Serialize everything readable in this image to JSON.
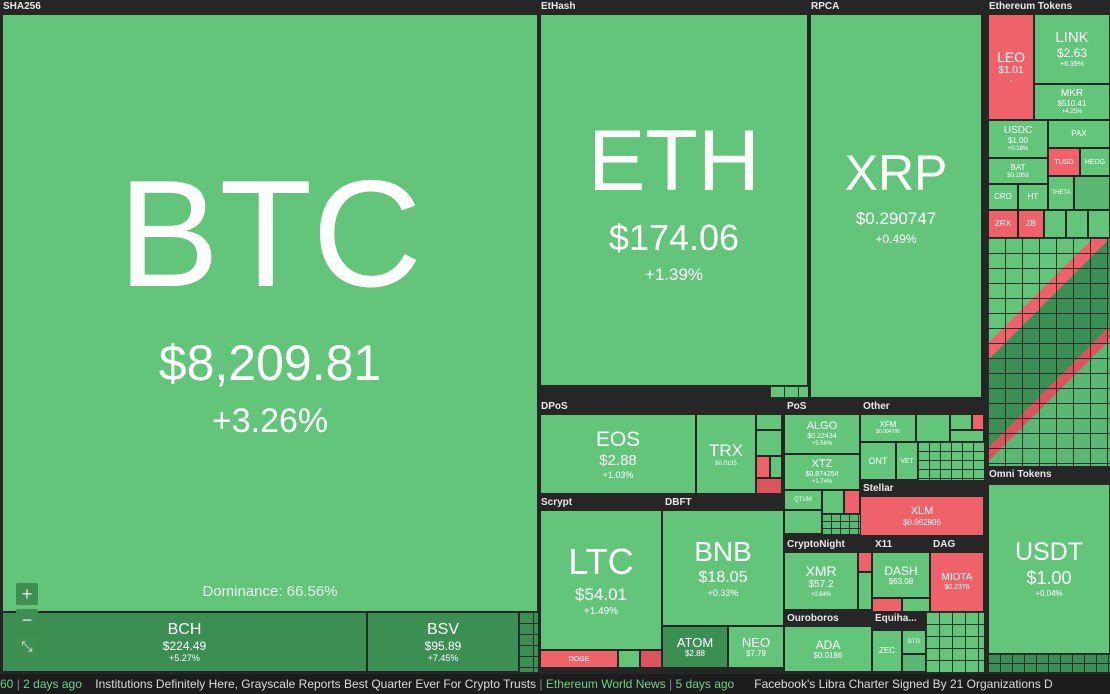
{
  "sectors": {
    "sha256": "SHA256",
    "ethash": "EtHash",
    "rpca": "RPCA",
    "eth_tokens": "Ethereum Tokens",
    "dpos": "DPoS",
    "pos": "PoS",
    "other": "Other",
    "scrypt": "Scrypt",
    "dbft": "DBFT",
    "stellar": "Stellar",
    "cryptonight": "CryptoNight",
    "x11": "X11",
    "dag": "DAG",
    "ouroboros": "Ouroboros",
    "equihash": "Equiha...",
    "omni": "Omni Tokens"
  },
  "coins": {
    "btc": {
      "sym": "BTC",
      "price": "$8,209.81",
      "pct": "+3.26%"
    },
    "dominance": "Dominance: 66.56%",
    "bch": {
      "sym": "BCH",
      "price": "$224.49",
      "pct": "+5.27%"
    },
    "bsv": {
      "sym": "BSV",
      "price": "$95.89",
      "pct": "+7.45%"
    },
    "eth": {
      "sym": "ETH",
      "price": "$174.06",
      "pct": "+1.39%"
    },
    "xrp": {
      "sym": "XRP",
      "price": "$0.290747",
      "pct": "+0.49%"
    },
    "leo": {
      "sym": "LEO",
      "price": "$1.01",
      "pct": "-"
    },
    "link": {
      "sym": "LINK",
      "price": "$2.63",
      "pct": "+6.39%"
    },
    "mkr": {
      "sym": "MKR",
      "price": "$510.41",
      "pct": "+4.25%"
    },
    "usdc": {
      "sym": "USDC",
      "price": "$1.00",
      "pct": "+0.18%"
    },
    "pax": {
      "sym": "PAX",
      "price": "",
      "pct": ""
    },
    "bat": {
      "sym": "BAT",
      "price": "$0.1956",
      "pct": ""
    },
    "tusd": {
      "sym": "TUSD",
      "price": "",
      "pct": ""
    },
    "hedg": {
      "sym": "HEDG",
      "price": "",
      "pct": ""
    },
    "cro": {
      "sym": "CRO",
      "price": "",
      "pct": ""
    },
    "ht": {
      "sym": "HT",
      "price": "",
      "pct": ""
    },
    "theta": {
      "sym": "THETA",
      "price": "",
      "pct": ""
    },
    "zrx": {
      "sym": "ZRX",
      "price": "",
      "pct": ""
    },
    "zb": {
      "sym": "ZB",
      "price": "",
      "pct": ""
    },
    "eos": {
      "sym": "EOS",
      "price": "$2.88",
      "pct": "+1.03%"
    },
    "trx": {
      "sym": "TRX",
      "price": "$0.0135",
      "pct": ""
    },
    "algo": {
      "sym": "ALGO",
      "price": "$0.22434",
      "pct": "+5.56%"
    },
    "xtz": {
      "sym": "XTZ",
      "price": "$0.874254",
      "pct": "+1.74%"
    },
    "qtum": {
      "sym": "QTUM",
      "price": "",
      "pct": ""
    },
    "xfm": {
      "sym": "XFM",
      "price": "$0.004798",
      "pct": ""
    },
    "ont": {
      "sym": "ONT",
      "price": "",
      "pct": ""
    },
    "vet": {
      "sym": "VET",
      "price": "",
      "pct": ""
    },
    "ltc": {
      "sym": "LTC",
      "price": "$54.01",
      "pct": "+1.49%"
    },
    "bnb": {
      "sym": "BNB",
      "price": "$18.05",
      "pct": "+0.33%"
    },
    "atom": {
      "sym": "ATOM",
      "price": "$2.88",
      "pct": ""
    },
    "neo": {
      "sym": "NEO",
      "price": "$7.79",
      "pct": ""
    },
    "xlm": {
      "sym": "XLM",
      "price": "$0.062906",
      "pct": ""
    },
    "xmr": {
      "sym": "XMR",
      "price": "$57.2",
      "pct": "+0.84%"
    },
    "dash": {
      "sym": "DASH",
      "price": "$63.08",
      "pct": ""
    },
    "miota": {
      "sym": "MIOTA",
      "price": "$0.2376",
      "pct": ""
    },
    "ada": {
      "sym": "ADA",
      "price": "$0.0186",
      "pct": ""
    },
    "zec": {
      "sym": "ZEC",
      "price": "",
      "pct": ""
    },
    "btg": {
      "sym": "BTG",
      "price": "",
      "pct": ""
    },
    "doge": {
      "sym": "DOGE",
      "price": "",
      "pct": ""
    },
    "usdt": {
      "sym": "USDT",
      "price": "$1.00",
      "pct": "+0.04%"
    }
  },
  "controls": {
    "zoom_in": "+",
    "zoom_out": "−",
    "fullscreen": "⤡"
  },
  "ticker": {
    "lead_fragment": "60",
    "lead_time": "2 days ago",
    "headline_1": "Institutions Definitely Here, Grayscale Reports Best Quarter Ever For Crypto Trusts",
    "source_1": "Ethereum World News",
    "time_1": "5 days ago",
    "headline_2": "Facebook's Libra Charter Signed By 21 Organizations D"
  },
  "colors": {
    "gain": "#63c57a",
    "gain_dark": "#3c8f52",
    "loss": "#f0626a",
    "background": "#262626"
  }
}
